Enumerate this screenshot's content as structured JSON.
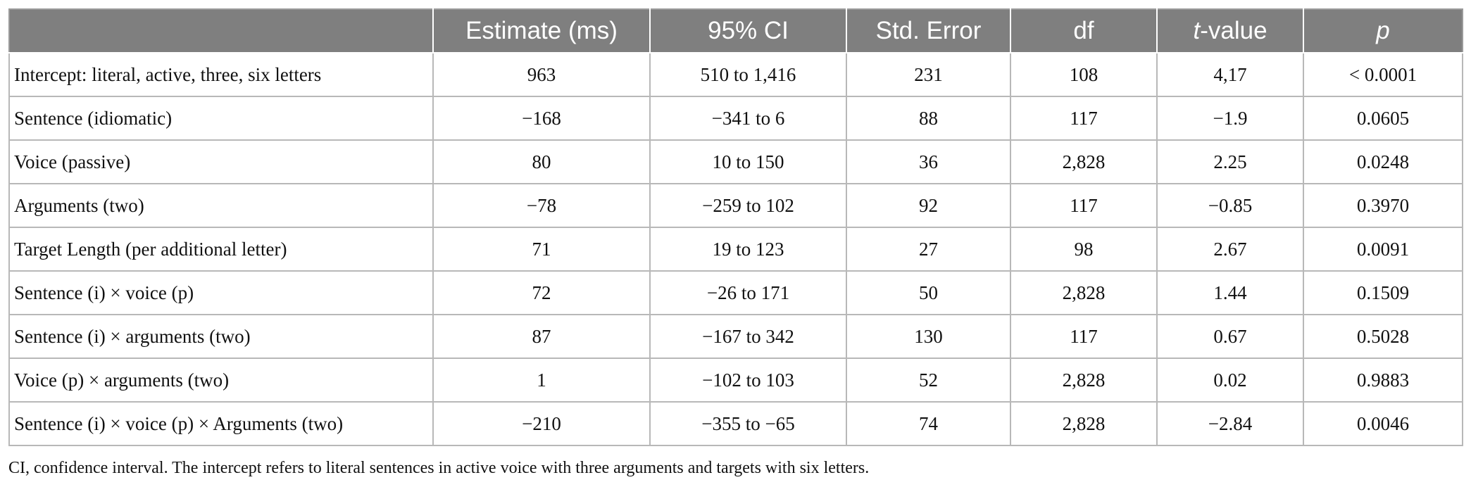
{
  "table": {
    "headers": {
      "c0": "",
      "c1": "Estimate (ms)",
      "c2": "95% CI",
      "c3": "Std. Error",
      "c4": "df",
      "c5_italic": "t",
      "c5_rest": "-value",
      "c6": "p"
    },
    "rows": [
      {
        "term": "Intercept: literal, active, three, six letters",
        "estimate": "963",
        "ci": "510 to 1,416",
        "se": "231",
        "df": "108",
        "t": "4,17",
        "p": "< 0.0001"
      },
      {
        "term": "Sentence (idiomatic)",
        "estimate": "−168",
        "ci": "−341 to 6",
        "se": "88",
        "df": "117",
        "t": "−1.9",
        "p": "0.0605"
      },
      {
        "term": "Voice (passive)",
        "estimate": "80",
        "ci": "10 to 150",
        "se": "36",
        "df": "2,828",
        "t": "2.25",
        "p": "0.0248"
      },
      {
        "term": "Arguments (two)",
        "estimate": "−78",
        "ci": "−259 to 102",
        "se": "92",
        "df": "117",
        "t": "−0.85",
        "p": "0.3970"
      },
      {
        "term": "Target Length (per additional letter)",
        "estimate": "71",
        "ci": "19 to 123",
        "se": "27",
        "df": "98",
        "t": "2.67",
        "p": "0.0091"
      },
      {
        "term": "Sentence (i) × voice (p)",
        "estimate": "72",
        "ci": "−26 to 171",
        "se": "50",
        "df": "2,828",
        "t": "1.44",
        "p": "0.1509"
      },
      {
        "term": "Sentence (i) × arguments (two)",
        "estimate": "87",
        "ci": "−167 to 342",
        "se": "130",
        "df": "117",
        "t": "0.67",
        "p": "0.5028"
      },
      {
        "term": "Voice (p) × arguments (two)",
        "estimate": "1",
        "ci": "−102 to 103",
        "se": "52",
        "df": "2,828",
        "t": "0.02",
        "p": "0.9883"
      },
      {
        "term": "Sentence (i) × voice (p) × Arguments (two)",
        "estimate": "−210",
        "ci": "−355 to −65",
        "se": "74",
        "df": "2,828",
        "t": "−2.84",
        "p": "0.0046"
      }
    ]
  },
  "footnote": "CI, confidence interval. The intercept refers to literal sentences in active voice with three arguments and targets with six letters.",
  "colors": {
    "header_bg": "#7f7f7f",
    "header_text": "#ffffff",
    "grid": "#b8b8b8"
  }
}
